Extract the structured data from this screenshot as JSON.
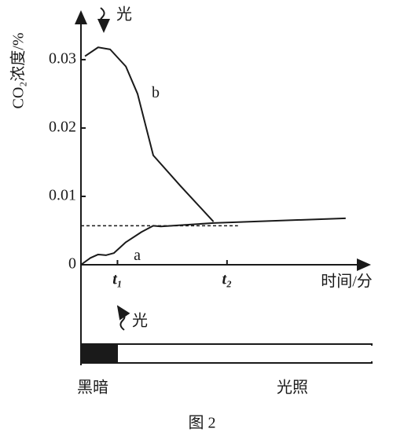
{
  "chart_data": {
    "type": "line",
    "y_label": "CO₂浓度/%",
    "x_label": "时间/分",
    "caption": "图 2",
    "light_arrow_top": "光",
    "light_arrow_bottom": "光",
    "dark_label": "黑暗",
    "light_label": "光照",
    "ylim": [
      0,
      0.037
    ],
    "yticks": [
      0,
      0.01,
      0.02,
      0.03
    ],
    "xlim": [
      0,
      7.9
    ],
    "xticks": [
      {
        "value": 1,
        "label": "t₁"
      },
      {
        "value": 4,
        "label": "t₂"
      }
    ],
    "dashed_line": {
      "y": 0.0057,
      "x": [
        0,
        4.3
      ]
    },
    "color": "#1a1a1a",
    "series": [
      {
        "name": "b",
        "x": [
          0.11,
          0.47,
          0.8,
          1.23,
          1.55,
          1.98,
          2.73,
          3.63
        ],
        "values": [
          0.0305,
          0.0318,
          0.0315,
          0.029,
          0.025,
          0.016,
          0.0115,
          0.0063
        ]
      },
      {
        "name": "a",
        "x": [
          0,
          0.26,
          0.47,
          0.69,
          0.9,
          1.23,
          1.66,
          1.98,
          2.19,
          3.63,
          7.25
        ],
        "values": [
          0,
          0.001,
          0.0015,
          0.0014,
          0.0017,
          0.0033,
          0.0048,
          0.0057,
          0.0056,
          0.0061,
          0.0068
        ]
      }
    ]
  }
}
